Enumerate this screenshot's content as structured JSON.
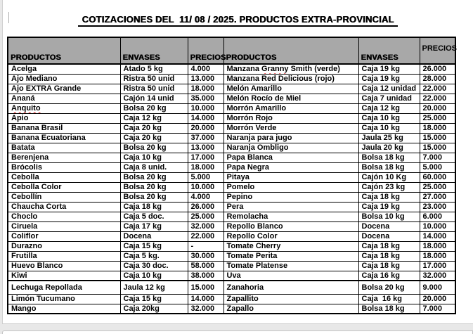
{
  "page": {
    "title": "COTIZACIONES DEL  11/ 08 / 2025. PRODUCTOS EXTRA-PROVINCIAL"
  },
  "table": {
    "headers": [
      "PRODUCTOS",
      "ENVASES",
      "PRECIOS",
      "PRODUCTOS",
      "ENVASES",
      "PRECIOS"
    ],
    "rows": [
      [
        "Acelga",
        "Atado 5 kg",
        "4.000",
        "Manzana Granny Smith (verde)",
        "Caja 19 kg",
        "26.000"
      ],
      [
        "Ajo Mediano",
        "Ristra 50 unid",
        "13.000",
        "Manzana Red Delicious (rojo)",
        "Caja 19 kg",
        "28.000"
      ],
      [
        "Ajo EXTRA Grande",
        "Ristra 50 unid",
        "18.000",
        "Melón Amarillo",
        "Caja 12 unidad",
        "22.000"
      ],
      [
        "Ananá",
        "Cajón 14 unid",
        "35.000",
        "Melón Rocío de Miel",
        "Caja 7 unidad",
        "22.000"
      ],
      [
        "Anquito",
        "Bolsa 20 kg",
        "10.000",
        "Morrón Amarillo",
        "Caja 12 kg",
        "20.000"
      ],
      [
        "Apio",
        "Caja 12 kg",
        "14.000",
        "Morrón Rojo",
        "Caja 10 kg",
        "25.000"
      ],
      [
        "Banana Brasil",
        "Caja 20 kg",
        "20.000",
        "Morrón Verde",
        "Caja 10 kg",
        "18.000"
      ],
      [
        "Banana Ecuatoriana",
        "Caja 20 kg",
        "37.000",
        "Naranja para jugo",
        "Jaula 25 kg",
        "15.000"
      ],
      [
        "Batata",
        "Bolsa 20 kg",
        "13.000",
        "Naranja Ombligo",
        "Jaula 20 kg",
        "15.000"
      ],
      [
        "Berenjena",
        "Caja 10 kg",
        "17.000",
        "Papa Blanca",
        "Bolsa 18 kg",
        "7.000"
      ],
      [
        "Brócolis",
        "Caja 8 unid.",
        "18.000",
        "Papa Negra",
        "Bolsa 18 kg",
        "5.000"
      ],
      [
        "Cebolla",
        "Bolsa 20 kg",
        "5.000",
        "Pitaya",
        "Cajón 10 Kg",
        "60.000"
      ],
      [
        "Cebolla Color",
        "Bolsa 20 kg",
        "10.000",
        "Pomelo",
        "Cajón 23 kg",
        "25.000"
      ],
      [
        "Cebollín",
        "Bolsa 20 kg",
        "4.000",
        "Pepino",
        "Caja 18 kg",
        "27.000"
      ],
      [
        "Chaucha Corta",
        "Caja 18 kg",
        "26.000",
        "Pera",
        "Caja 19 kg",
        "23.000"
      ],
      [
        "Choclo",
        "Caja 5 doc.",
        "25.000",
        "Remolacha",
        "Bolsa 10 kg",
        "6.000"
      ],
      [
        "Ciruela",
        "Caja 17 kg",
        "32.000",
        "Repollo Blanco",
        "Docena",
        "10.000"
      ],
      [
        "Coliflor",
        "Docena",
        "22.000",
        "Repollo Color",
        "Docena",
        "14.000"
      ],
      [
        "Durazno",
        "Caja 15 kg",
        "-",
        "Tomate Cherry",
        "Caja 18 kg",
        "18.000"
      ],
      [
        "Frutilla",
        "Caja 5 kg.",
        "30.000",
        "Tomate Perita",
        "Caja 18 kg",
        "18.000"
      ],
      [
        "Huevo Blanco",
        "Caja 30 doc.",
        "58.000",
        "Tomate Platense",
        "Caja 18 kg",
        "17.000"
      ],
      [
        "Kiwi",
        "Caja 10 kg",
        "38.000",
        "Uva",
        "Caja 16 kg",
        "32.000"
      ],
      [
        "Lechuga Repollada",
        "Jaula 12 kg",
        "15.000",
        "Zanahoria",
        "Bolsa 20 kg",
        "9.000"
      ],
      [
        "Limón Tucumano",
        "Caja 15 kg",
        "14.000",
        "Zapallito",
        "Caja  16 kg",
        "20.000"
      ],
      [
        "Mango",
        "Caja 20kg",
        "32.000",
        "Zapallo",
        "Bolsa 18 kg",
        "7.000"
      ]
    ],
    "tall_row_index": 22,
    "misspelled_words": [
      "Anquito",
      "Granny"
    ]
  },
  "colors": {
    "header_bg": "#a8a8a8",
    "border": "#000000",
    "squiggle": "#e01010"
  }
}
